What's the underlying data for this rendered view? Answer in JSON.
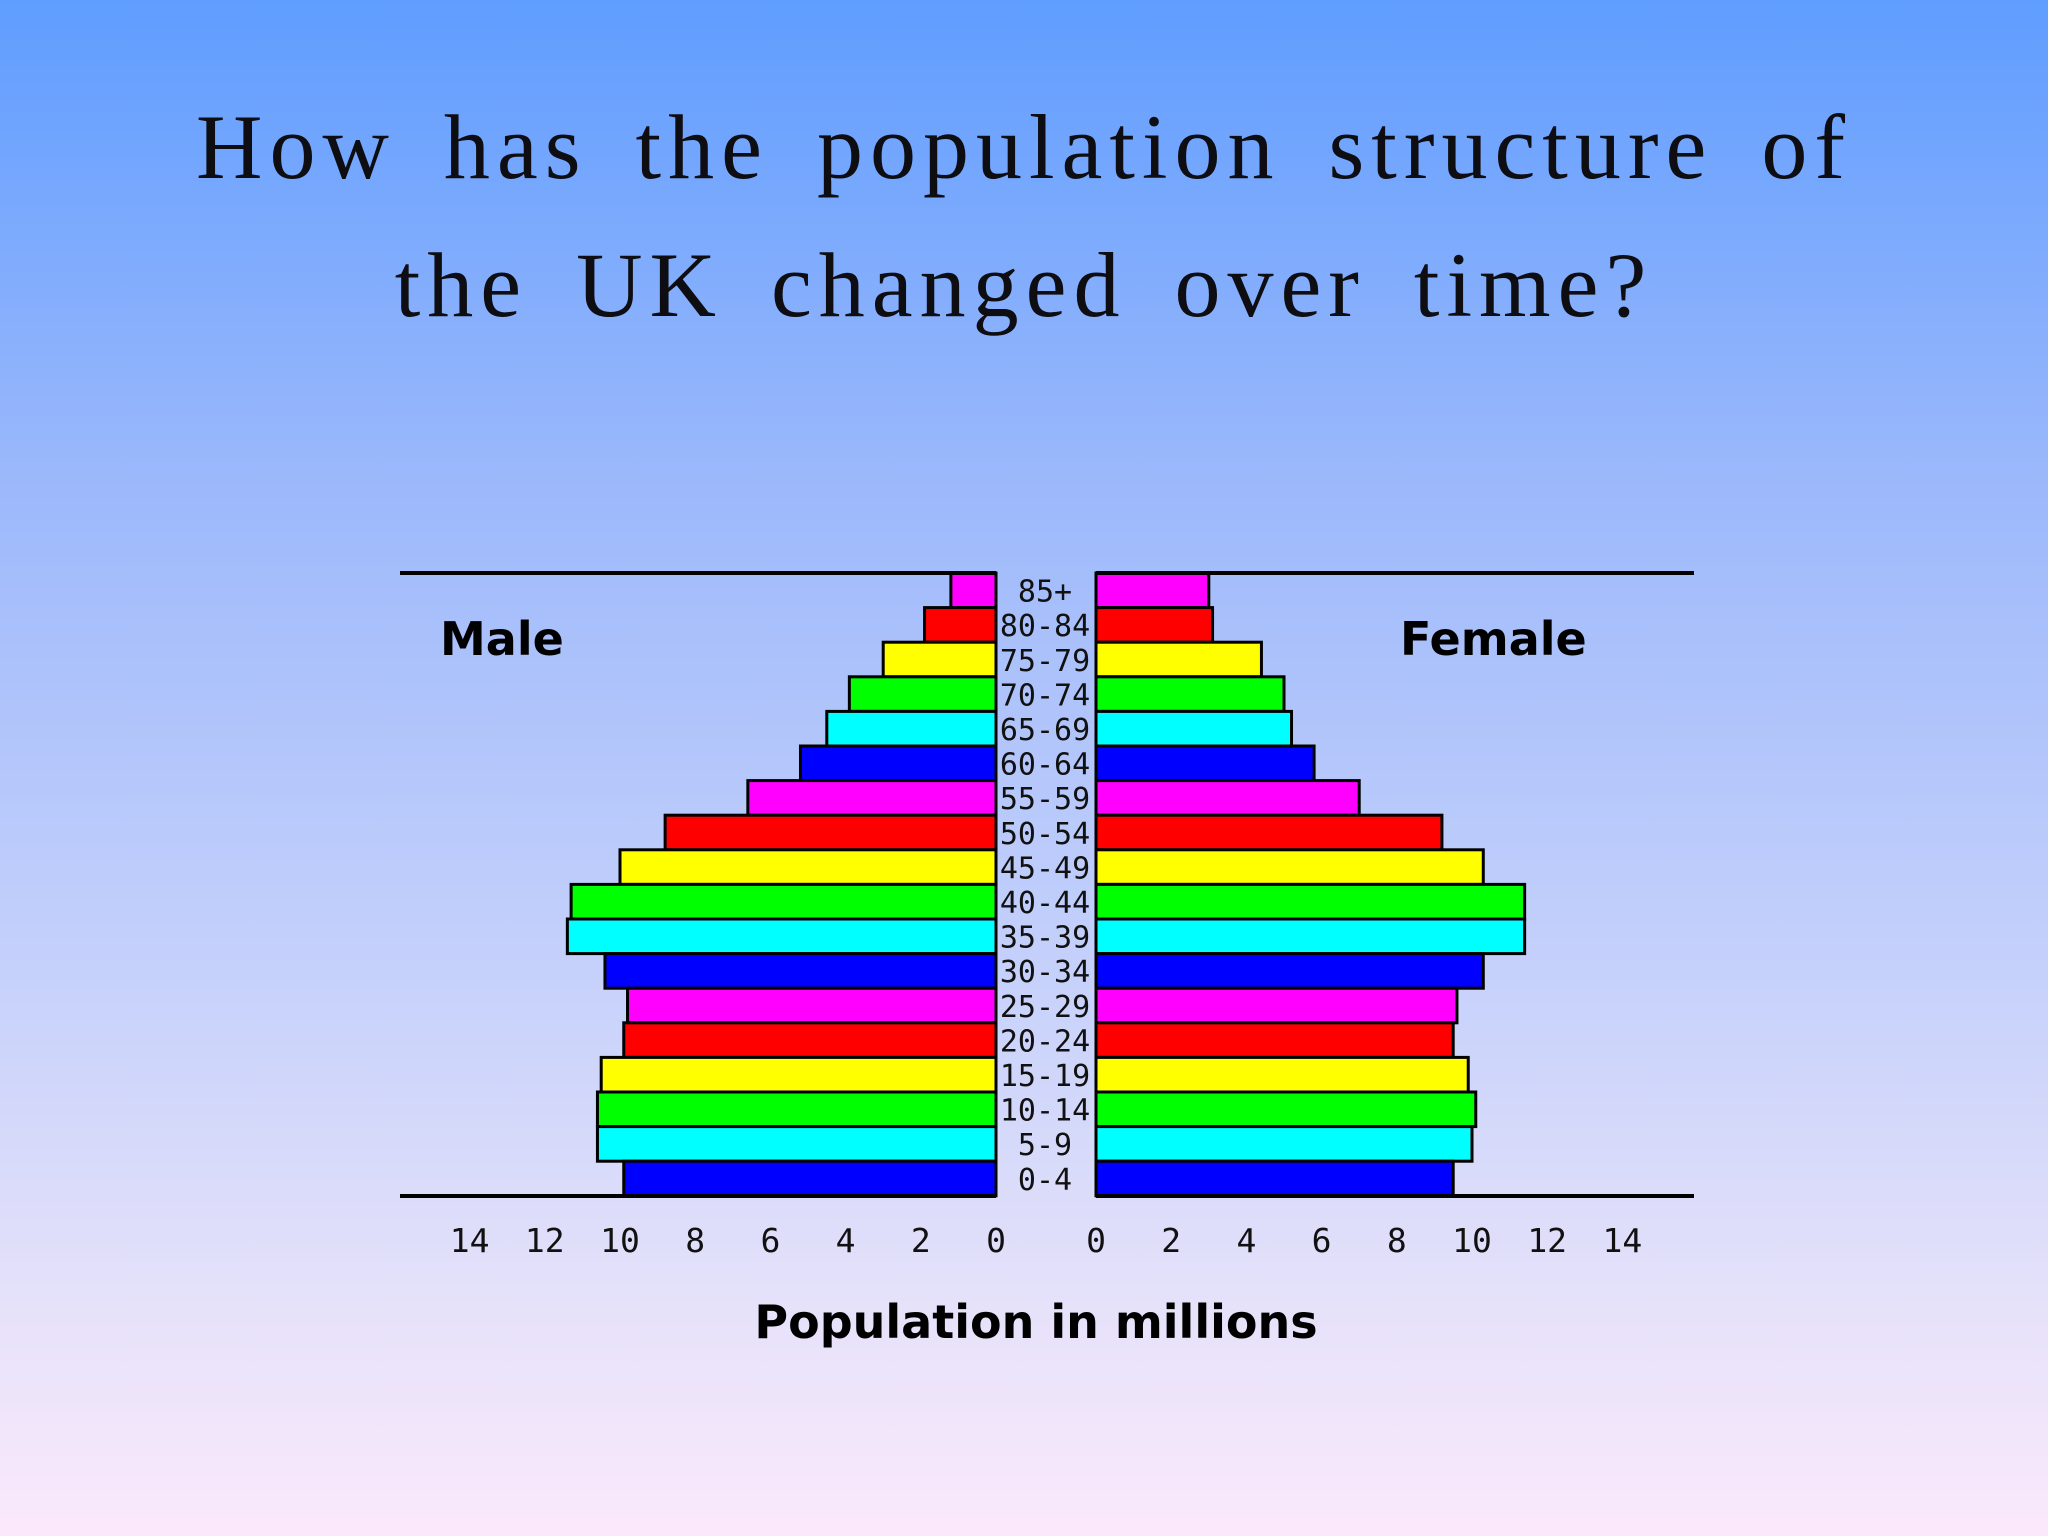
{
  "slide": {
    "title_line1": "How has the population structure of",
    "title_line2": "the UK changed over time?"
  },
  "chart_data": {
    "type": "bar",
    "subtype": "population-pyramid",
    "categories": [
      "85+",
      "80-84",
      "75-79",
      "70-74",
      "65-69",
      "60-64",
      "55-59",
      "50-54",
      "45-49",
      "40-44",
      "35-39",
      "30-34",
      "25-29",
      "20-24",
      "15-19",
      "10-14",
      "5-9",
      "0-4"
    ],
    "series": [
      {
        "name": "Male",
        "values": [
          1.2,
          1.9,
          3.0,
          3.9,
          4.5,
          5.2,
          6.6,
          8.8,
          10.0,
          11.3,
          11.4,
          10.4,
          9.8,
          9.9,
          10.5,
          10.6,
          10.6,
          9.9
        ]
      },
      {
        "name": "Female",
        "values": [
          3.0,
          3.1,
          4.4,
          5.0,
          5.2,
          5.8,
          7.0,
          9.2,
          10.3,
          11.4,
          11.4,
          10.3,
          9.6,
          9.5,
          9.9,
          10.1,
          10.0,
          9.5
        ]
      }
    ],
    "colors": [
      "#ff00ff",
      "#ff0000",
      "#ffff00",
      "#00ff00",
      "#00ffff",
      "#0000ff"
    ],
    "xlabel": "Population in millions",
    "xlim": [
      0,
      16
    ],
    "x_ticks": [
      0,
      2,
      4,
      6,
      8,
      10,
      12,
      14
    ],
    "x_tick_labels": [
      "0",
      "2",
      "4",
      "6",
      "8",
      "10",
      "12",
      "14"
    ],
    "left_label": "Male",
    "right_label": "Female",
    "grid": false
  }
}
